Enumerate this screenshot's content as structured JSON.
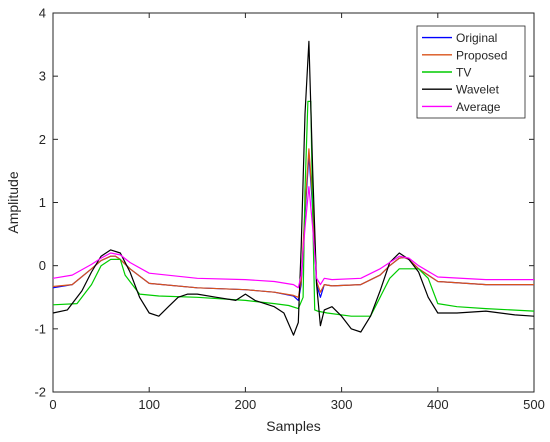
{
  "chart_data": {
    "type": "line",
    "title": "",
    "xlabel": "Samples",
    "ylabel": "Amplitude",
    "xlim": [
      0,
      500
    ],
    "ylim": [
      -2,
      4
    ],
    "xticks": [
      0,
      100,
      200,
      300,
      400,
      500
    ],
    "yticks": [
      -2,
      -1,
      0,
      1,
      2,
      3,
      4
    ],
    "grid": false,
    "legend_position": "top-right",
    "series": [
      {
        "name": "Original",
        "color": "#0000ff",
        "x": [
          0,
          20,
          40,
          50,
          60,
          65,
          70,
          80,
          100,
          150,
          200,
          230,
          250,
          255,
          258,
          262,
          266,
          270,
          274,
          278,
          282,
          290,
          320,
          340,
          350,
          360,
          365,
          370,
          380,
          400,
          450,
          500
        ],
        "y": [
          -0.35,
          -0.3,
          -0.05,
          0.08,
          0.15,
          0.15,
          0.1,
          -0.05,
          -0.28,
          -0.35,
          -0.38,
          -0.42,
          -0.48,
          -0.55,
          -0.3,
          0.8,
          1.75,
          0.9,
          -0.3,
          -0.5,
          -0.3,
          -0.32,
          -0.3,
          -0.15,
          0.0,
          0.12,
          0.13,
          0.1,
          -0.05,
          -0.25,
          -0.3,
          -0.3
        ]
      },
      {
        "name": "Proposed",
        "color": "#d95319",
        "x": [
          0,
          20,
          40,
          50,
          60,
          65,
          70,
          80,
          100,
          150,
          200,
          230,
          250,
          255,
          258,
          262,
          266,
          270,
          274,
          278,
          282,
          290,
          320,
          340,
          350,
          360,
          365,
          370,
          380,
          400,
          450,
          500
        ],
        "y": [
          -0.33,
          -0.3,
          -0.05,
          0.08,
          0.15,
          0.15,
          0.1,
          -0.05,
          -0.28,
          -0.35,
          -0.38,
          -0.42,
          -0.47,
          -0.5,
          -0.25,
          0.9,
          1.85,
          1.0,
          -0.25,
          -0.42,
          -0.3,
          -0.32,
          -0.3,
          -0.15,
          0.0,
          0.12,
          0.13,
          0.1,
          -0.05,
          -0.25,
          -0.3,
          -0.3
        ]
      },
      {
        "name": "TV",
        "color": "#00cc00",
        "x": [
          0,
          25,
          40,
          50,
          60,
          70,
          75,
          90,
          110,
          150,
          200,
          230,
          245,
          255,
          260,
          262,
          265,
          268,
          270,
          272,
          275,
          285,
          310,
          330,
          350,
          360,
          370,
          380,
          390,
          400,
          420,
          450,
          500
        ],
        "y": [
          -0.62,
          -0.6,
          -0.3,
          0.0,
          0.1,
          0.1,
          -0.15,
          -0.45,
          -0.48,
          -0.5,
          -0.55,
          -0.6,
          -0.63,
          -0.68,
          -0.5,
          1.2,
          2.6,
          2.6,
          0.8,
          -0.7,
          -0.72,
          -0.75,
          -0.8,
          -0.8,
          -0.2,
          -0.05,
          -0.05,
          -0.05,
          -0.2,
          -0.6,
          -0.65,
          -0.68,
          -0.72
        ]
      },
      {
        "name": "Wavelet",
        "color": "#000000",
        "x": [
          0,
          15,
          30,
          40,
          50,
          60,
          70,
          80,
          90,
          100,
          110,
          120,
          130,
          140,
          150,
          170,
          190,
          200,
          210,
          230,
          240,
          250,
          255,
          258,
          262,
          266,
          270,
          274,
          278,
          282,
          290,
          300,
          310,
          320,
          330,
          340,
          350,
          360,
          370,
          380,
          390,
          400,
          420,
          450,
          480,
          500
        ],
        "y": [
          -0.75,
          -0.7,
          -0.4,
          -0.1,
          0.15,
          0.25,
          0.2,
          -0.1,
          -0.5,
          -0.75,
          -0.8,
          -0.65,
          -0.5,
          -0.45,
          -0.45,
          -0.5,
          -0.55,
          -0.45,
          -0.55,
          -0.65,
          -0.75,
          -1.1,
          -0.9,
          0.3,
          2.4,
          3.55,
          1.5,
          -0.3,
          -0.95,
          -0.7,
          -0.65,
          -0.8,
          -1.0,
          -1.05,
          -0.8,
          -0.4,
          0.05,
          0.2,
          0.1,
          -0.1,
          -0.5,
          -0.75,
          -0.75,
          -0.72,
          -0.78,
          -0.8
        ]
      },
      {
        "name": "Average",
        "color": "#ff00ff",
        "x": [
          0,
          20,
          40,
          50,
          60,
          70,
          80,
          100,
          150,
          200,
          230,
          250,
          255,
          258,
          262,
          266,
          270,
          274,
          278,
          282,
          290,
          320,
          340,
          350,
          360,
          370,
          380,
          400,
          450,
          500
        ],
        "y": [
          -0.2,
          -0.15,
          0.02,
          0.12,
          0.2,
          0.17,
          0.05,
          -0.12,
          -0.2,
          -0.22,
          -0.25,
          -0.3,
          -0.35,
          -0.15,
          0.6,
          1.25,
          0.6,
          -0.2,
          -0.3,
          -0.2,
          -0.22,
          -0.2,
          -0.05,
          0.05,
          0.15,
          0.12,
          0.0,
          -0.18,
          -0.22,
          -0.22
        ]
      }
    ]
  }
}
